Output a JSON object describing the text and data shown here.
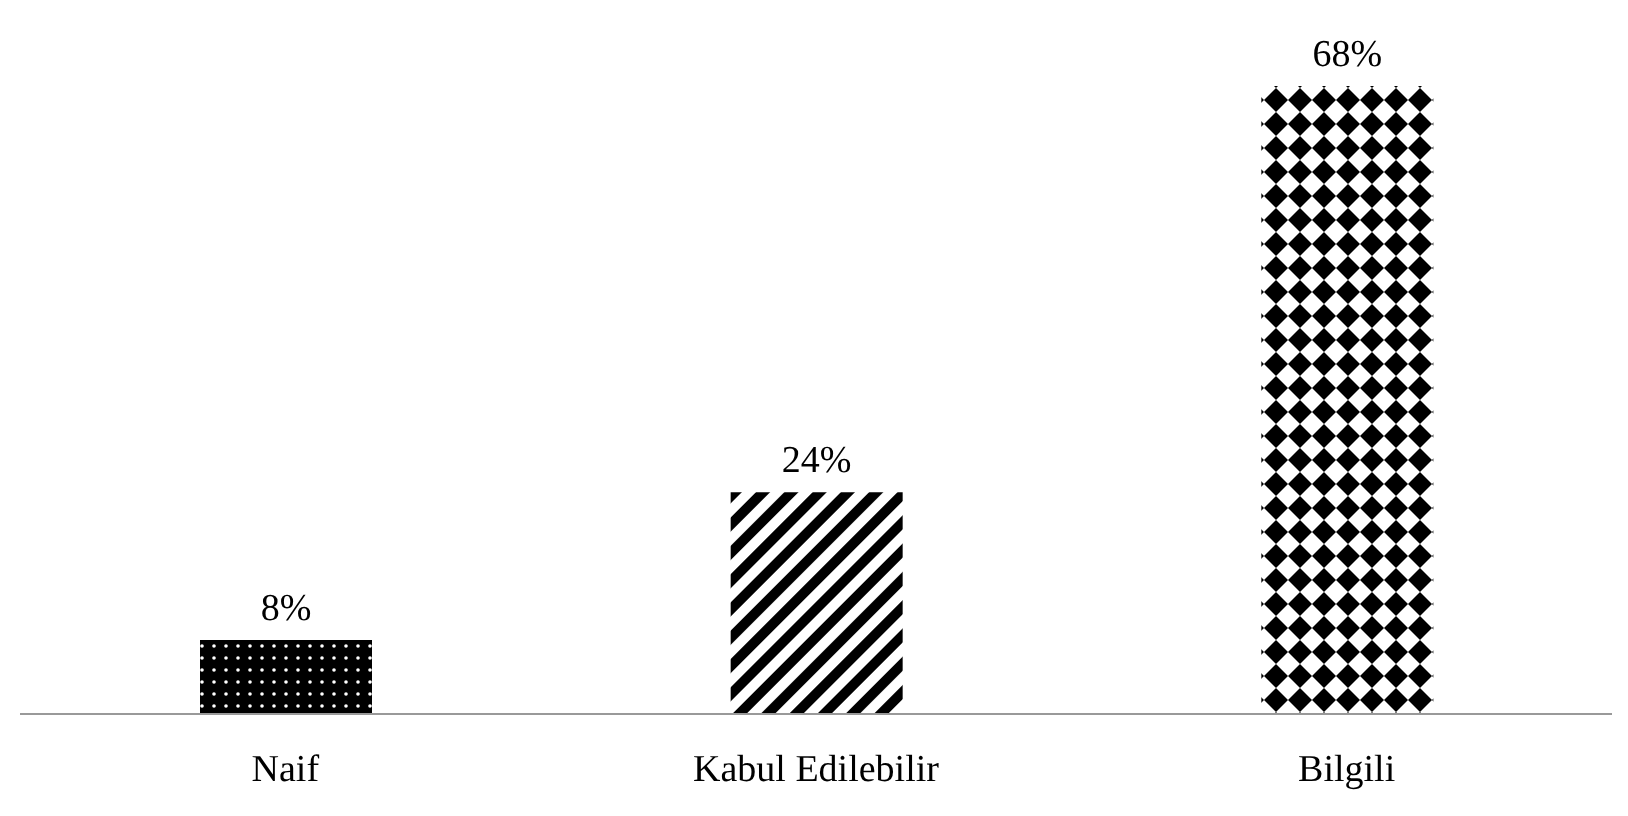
{
  "chart_data": {
    "type": "bar",
    "categories": [
      "Naif",
      "Kabul Edilebilir",
      "Bilgili"
    ],
    "values": [
      8,
      24,
      68
    ],
    "value_labels": [
      "8%",
      "24%",
      "68%"
    ],
    "color": "#000000",
    "grid": false
  }
}
